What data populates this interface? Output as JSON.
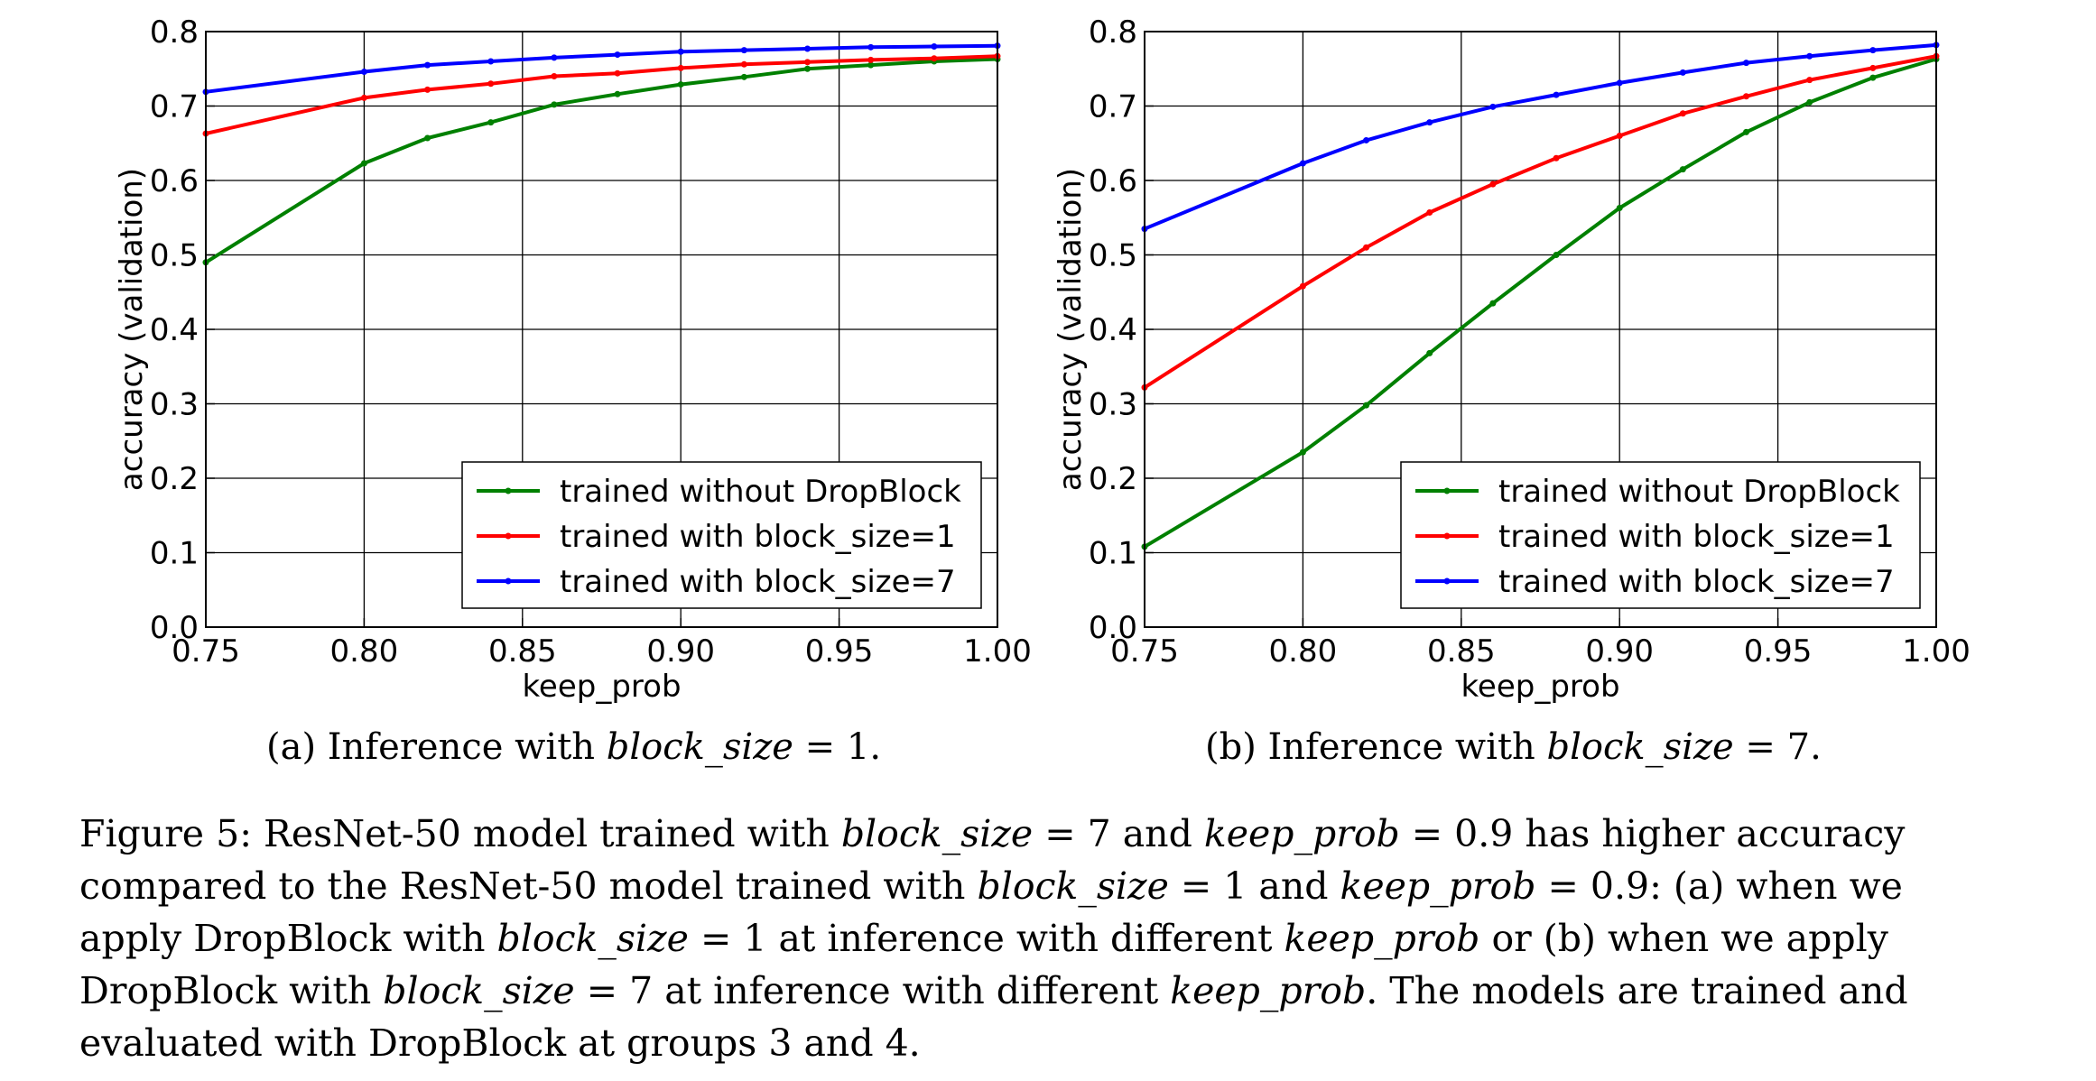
{
  "chart_data": [
    {
      "type": "line",
      "panel": "a",
      "xlabel": "keep_prob",
      "ylabel": "accuracy (validation)",
      "xlim": [
        0.75,
        1.0
      ],
      "ylim": [
        0.0,
        0.8
      ],
      "x_ticks": [
        "0.75",
        "0.80",
        "0.85",
        "0.90",
        "0.95",
        "1.00"
      ],
      "y_ticks": [
        "0.0",
        "0.1",
        "0.2",
        "0.3",
        "0.4",
        "0.5",
        "0.6",
        "0.7",
        "0.8"
      ],
      "grid": true,
      "legend_position": "lower-right",
      "series": [
        {
          "name": "trained without DropBlock",
          "color": "#008000",
          "x": [
            0.75,
            0.8,
            0.82,
            0.84,
            0.86,
            0.88,
            0.9,
            0.92,
            0.94,
            0.96,
            0.98,
            1.0
          ],
          "y": [
            0.49,
            0.623,
            0.657,
            0.678,
            0.702,
            0.716,
            0.729,
            0.739,
            0.75,
            0.755,
            0.76,
            0.763
          ]
        },
        {
          "name": "trained with block_size=1",
          "color": "#ff0000",
          "x": [
            0.75,
            0.8,
            0.82,
            0.84,
            0.86,
            0.88,
            0.9,
            0.92,
            0.94,
            0.96,
            0.98,
            1.0
          ],
          "y": [
            0.663,
            0.711,
            0.722,
            0.73,
            0.74,
            0.744,
            0.751,
            0.756,
            0.759,
            0.762,
            0.764,
            0.767
          ]
        },
        {
          "name": "trained with block_size=7",
          "color": "#0000ff",
          "x": [
            0.75,
            0.8,
            0.82,
            0.84,
            0.86,
            0.88,
            0.9,
            0.92,
            0.94,
            0.96,
            0.98,
            1.0
          ],
          "y": [
            0.719,
            0.746,
            0.755,
            0.76,
            0.765,
            0.769,
            0.773,
            0.775,
            0.777,
            0.779,
            0.78,
            0.781
          ]
        }
      ]
    },
    {
      "type": "line",
      "panel": "b",
      "xlabel": "keep_prob",
      "ylabel": "accuracy (validation)",
      "xlim": [
        0.75,
        1.0
      ],
      "ylim": [
        0.0,
        0.8
      ],
      "x_ticks": [
        "0.75",
        "0.80",
        "0.85",
        "0.90",
        "0.95",
        "1.00"
      ],
      "y_ticks": [
        "0.0",
        "0.1",
        "0.2",
        "0.3",
        "0.4",
        "0.5",
        "0.6",
        "0.7",
        "0.8"
      ],
      "grid": true,
      "legend_position": "lower-right",
      "series": [
        {
          "name": "trained without DropBlock",
          "color": "#008000",
          "x": [
            0.75,
            0.8,
            0.82,
            0.84,
            0.86,
            0.88,
            0.9,
            0.92,
            0.94,
            0.96,
            0.98,
            1.0
          ],
          "y": [
            0.108,
            0.235,
            0.298,
            0.368,
            0.435,
            0.5,
            0.563,
            0.615,
            0.665,
            0.705,
            0.738,
            0.763
          ]
        },
        {
          "name": "trained with block_size=1",
          "color": "#ff0000",
          "x": [
            0.75,
            0.8,
            0.82,
            0.84,
            0.86,
            0.88,
            0.9,
            0.92,
            0.94,
            0.96,
            0.98,
            1.0
          ],
          "y": [
            0.322,
            0.458,
            0.51,
            0.557,
            0.595,
            0.63,
            0.66,
            0.69,
            0.713,
            0.735,
            0.751,
            0.767
          ]
        },
        {
          "name": "trained with block_size=7",
          "color": "#0000ff",
          "x": [
            0.75,
            0.8,
            0.82,
            0.84,
            0.86,
            0.88,
            0.9,
            0.92,
            0.94,
            0.96,
            0.98,
            1.0
          ],
          "y": [
            0.535,
            0.623,
            0.654,
            0.678,
            0.699,
            0.715,
            0.731,
            0.745,
            0.758,
            0.767,
            0.775,
            0.782
          ]
        }
      ]
    }
  ],
  "subcaptions": {
    "a": {
      "prefix": "(a) Inference with ",
      "math": "block_size",
      "suffix": " = 1."
    },
    "b": {
      "prefix": "(b) Inference with ",
      "math": "block_size",
      "suffix": " = 7."
    }
  },
  "caption": {
    "line1": [
      {
        "t": "Figure 5: ResNet-50 model trained with "
      },
      {
        "m": "block_size"
      },
      {
        "t": " = 7 and "
      },
      {
        "m": "keep_prob"
      },
      {
        "t": " = 0.9 has higher accuracy"
      }
    ],
    "line2": [
      {
        "t": "compared to the ResNet-50 model trained with "
      },
      {
        "m": "block_size"
      },
      {
        "t": " = 1 and "
      },
      {
        "m": "keep_prob"
      },
      {
        "t": " = 0.9: (a) when we"
      }
    ],
    "line3": [
      {
        "t": "apply DropBlock with "
      },
      {
        "m": "block_size"
      },
      {
        "t": " = 1 at inference with different "
      },
      {
        "m": "keep_prob"
      },
      {
        "t": " or (b) when we apply"
      }
    ],
    "line4": [
      {
        "t": "DropBlock with "
      },
      {
        "m": "block_size"
      },
      {
        "t": " = 7 at inference with different "
      },
      {
        "m": "keep_prob"
      },
      {
        "t": ". The models are trained and"
      }
    ],
    "line5": [
      {
        "t": "evaluated with DropBlock at groups 3 and 4."
      }
    ]
  }
}
